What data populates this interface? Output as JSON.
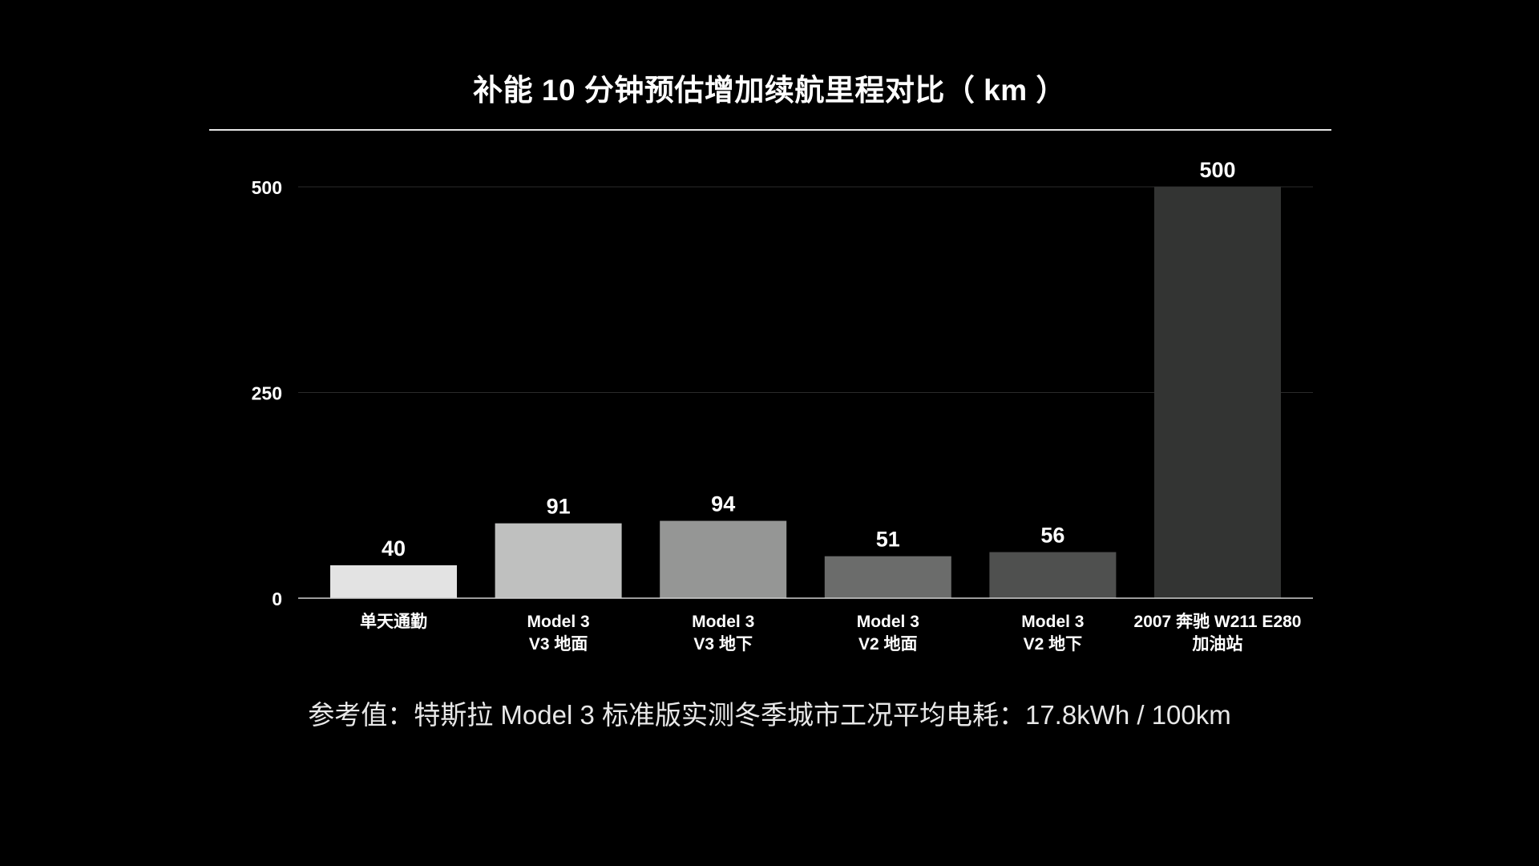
{
  "page": {
    "title": "补能 10 分钟预估增加续航里程对比（ km ）",
    "footnote": "参考值：特斯拉 Model 3 标准版实测冬季城市工况平均电耗：17.8kWh / 100km"
  },
  "chart_data": {
    "type": "bar",
    "title": "补能 10 分钟预估增加续航里程对比（ km ）",
    "xlabel": "",
    "ylabel": "",
    "ylim": [
      0,
      500
    ],
    "yticks": [
      0,
      250,
      500
    ],
    "grid": true,
    "legend": "none",
    "categories": [
      [
        "单天通勤"
      ],
      [
        "Model 3",
        "V3 地面"
      ],
      [
        "Model 3",
        "V3 地下"
      ],
      [
        "Model 3",
        "V2 地面"
      ],
      [
        "Model 3",
        "V2 地下"
      ],
      [
        "2007 奔驰 W211 E280",
        "加油站"
      ]
    ],
    "values": [
      40,
      91,
      94,
      51,
      56,
      500
    ],
    "data_labels": [
      "40",
      "91",
      "94",
      "51",
      "56",
      "500"
    ],
    "bar_colors": [
      "#e3e3e3",
      "#bfc0bf",
      "#959695",
      "#6b6c6b",
      "#4f504f",
      "#333433"
    ]
  },
  "colors": {
    "background": "#000000",
    "text": "#ffffff",
    "gridline": "#2a2a2a",
    "axis": "#d0d0d0"
  }
}
